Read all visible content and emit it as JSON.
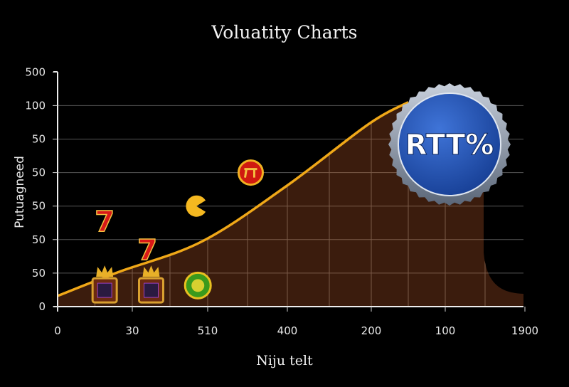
{
  "chart_data": {
    "type": "area",
    "title": "Voluatity Charts",
    "xlabel": "Niju telt",
    "ylabel": "Putuagneed",
    "x_ticks": [
      "0",
      "30",
      "510",
      "400",
      "200",
      "100",
      "1900"
    ],
    "y_ticks": [
      "0",
      "50",
      "50",
      "50",
      "50",
      "50",
      "100",
      "500"
    ],
    "grid": true,
    "series": [
      {
        "x_tick_index": [
          0,
          0.8,
          1.92,
          2.99,
          3.97,
          4.5
        ],
        "y_tick_index": [
          0.32,
          1.02,
          1.94,
          3.6,
          5.45,
          6.1
        ]
      }
    ],
    "badge": {
      "text": "RTT%",
      "color": "#2a58b8"
    },
    "colors": {
      "line": "#f0a818",
      "fill": "#3b1c0d",
      "background": "#000000",
      "grid": "#555555"
    },
    "symbols": [
      {
        "icon": "seven-icon",
        "x_tick_index": 0.63,
        "y_tick_index": 2.55
      },
      {
        "icon": "seven-icon",
        "x_tick_index": 1.2,
        "y_tick_index": 1.7
      },
      {
        "icon": "pacman-icon",
        "x_tick_index": 1.85,
        "y_tick_index": 3.0
      },
      {
        "icon": "red-coin-icon",
        "x_tick_index": 2.54,
        "y_tick_index": 4.0
      },
      {
        "icon": "crown-crest-icon",
        "x_tick_index": 0.63,
        "y_tick_index": 0.55
      },
      {
        "icon": "crown-crest-icon",
        "x_tick_index": 1.25,
        "y_tick_index": 0.55
      },
      {
        "icon": "green-coin-icon",
        "x_tick_index": 1.87,
        "y_tick_index": 0.63
      }
    ]
  }
}
